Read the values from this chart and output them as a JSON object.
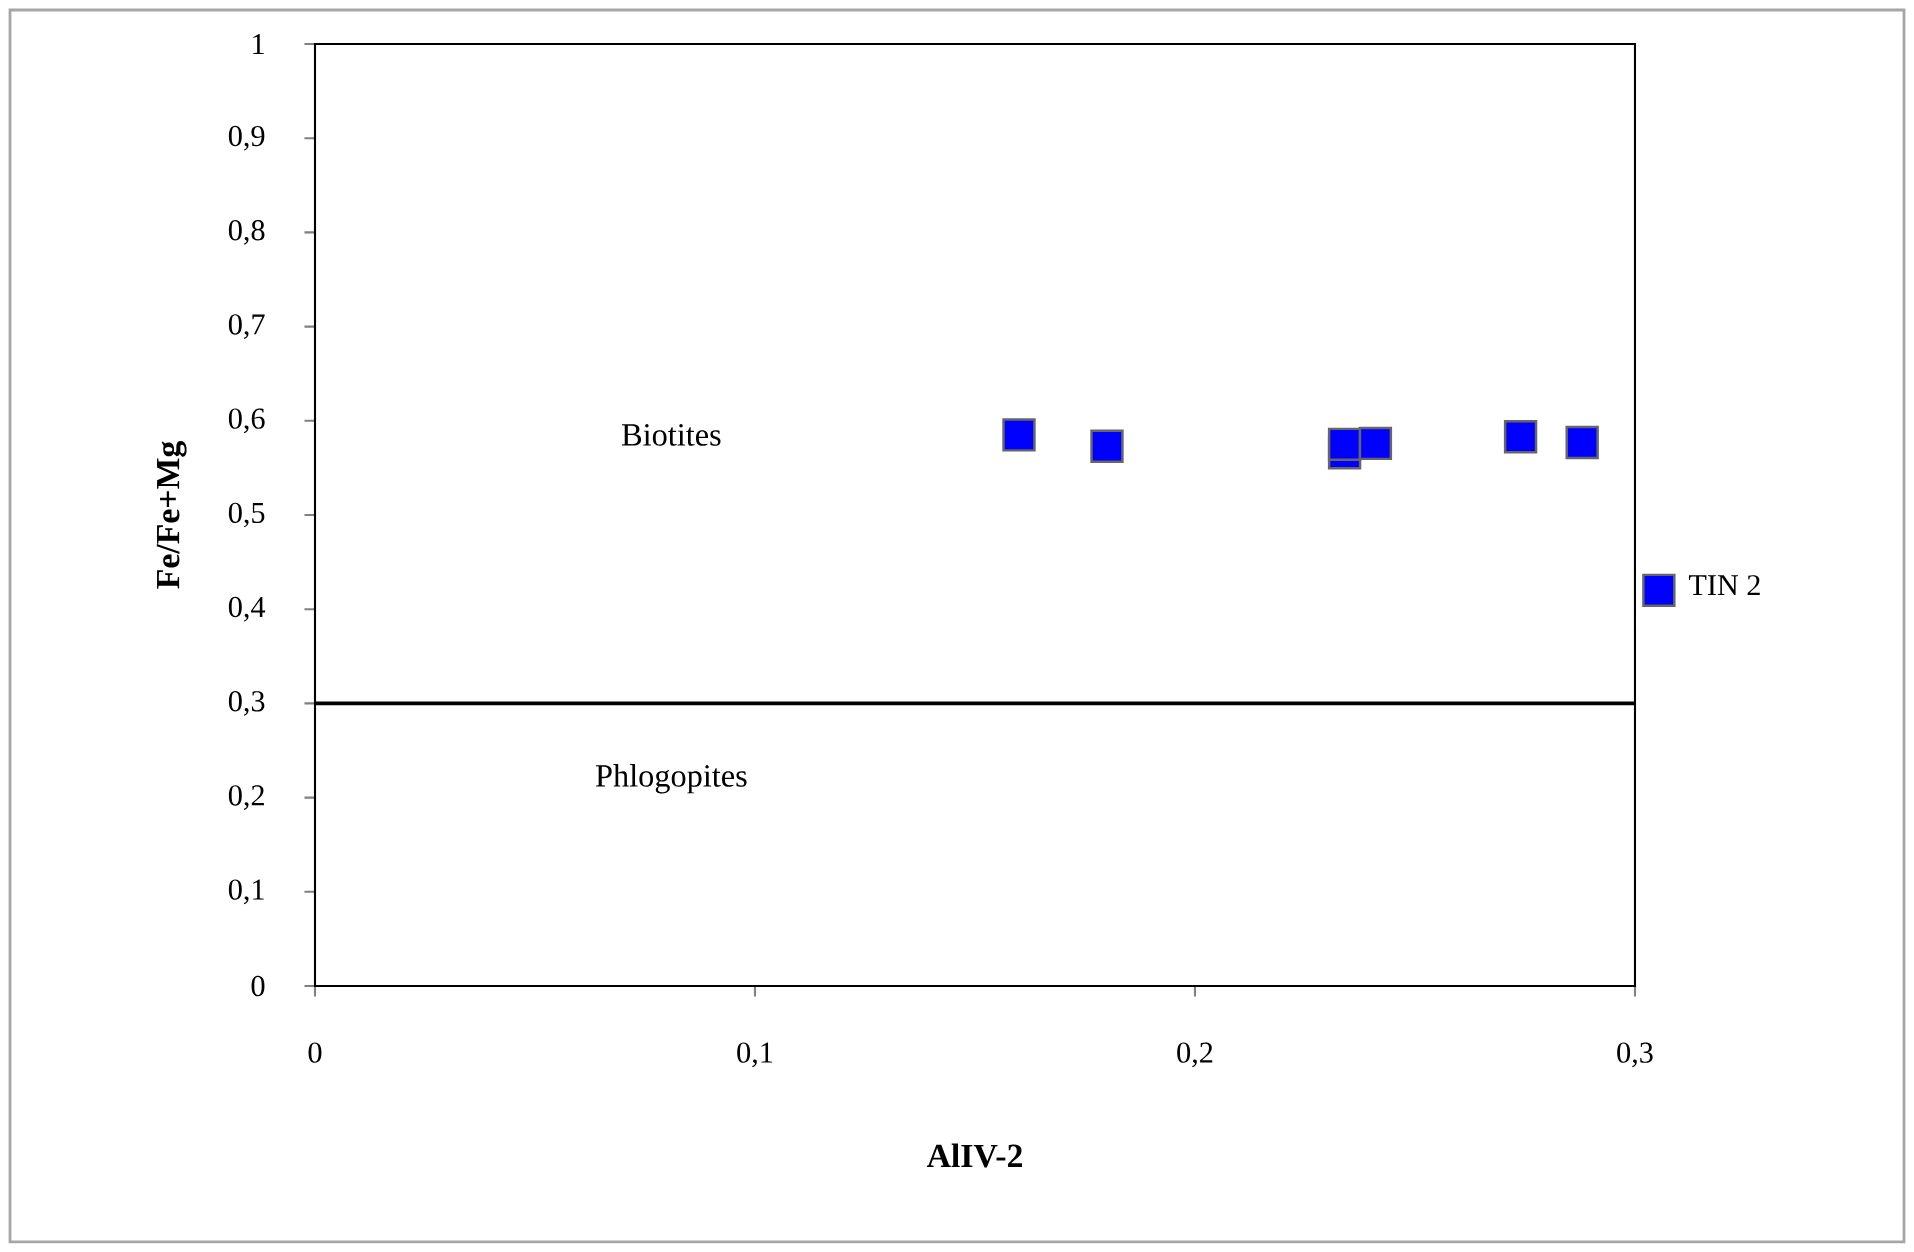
{
  "chart_data": {
    "type": "scatter",
    "xlabel": "AlIV-2",
    "ylabel": "Fe/Fe+Mg",
    "x": [
      0.16,
      0.18,
      0.234,
      0.234,
      0.241,
      0.274,
      0.288
    ],
    "series": [
      {
        "name": "TIN 2",
        "color": "#0000ff",
        "values": [
          0.585,
          0.573,
          0.566,
          0.575,
          0.576,
          0.583,
          0.577
        ]
      }
    ],
    "xlim": [
      0,
      0.3
    ],
    "ylim": [
      0,
      1
    ],
    "xticks": [
      {
        "value": 0,
        "label": "0"
      },
      {
        "value": 0.1,
        "label": "0,1"
      },
      {
        "value": 0.2,
        "label": "0,2"
      },
      {
        "value": 0.3,
        "label": "0,3"
      }
    ],
    "yticks": [
      {
        "value": 0,
        "label": "0"
      },
      {
        "value": 0.1,
        "label": "0,1"
      },
      {
        "value": 0.2,
        "label": "0,2"
      },
      {
        "value": 0.3,
        "label": "0,3"
      },
      {
        "value": 0.4,
        "label": "0,4"
      },
      {
        "value": 0.5,
        "label": "0,5"
      },
      {
        "value": 0.6,
        "label": "0,6"
      },
      {
        "value": 0.7,
        "label": "0,7"
      },
      {
        "value": 0.8,
        "label": "0,8"
      },
      {
        "value": 0.9,
        "label": "0,9"
      },
      {
        "value": 1,
        "label": "1"
      }
    ],
    "ref_lines": [
      {
        "axis": "y",
        "value": 0.3,
        "color": "#000000"
      }
    ],
    "annotations": [
      "Biotites",
      "Phlogopites"
    ],
    "marker": "square",
    "legend": "right",
    "grid": false
  }
}
